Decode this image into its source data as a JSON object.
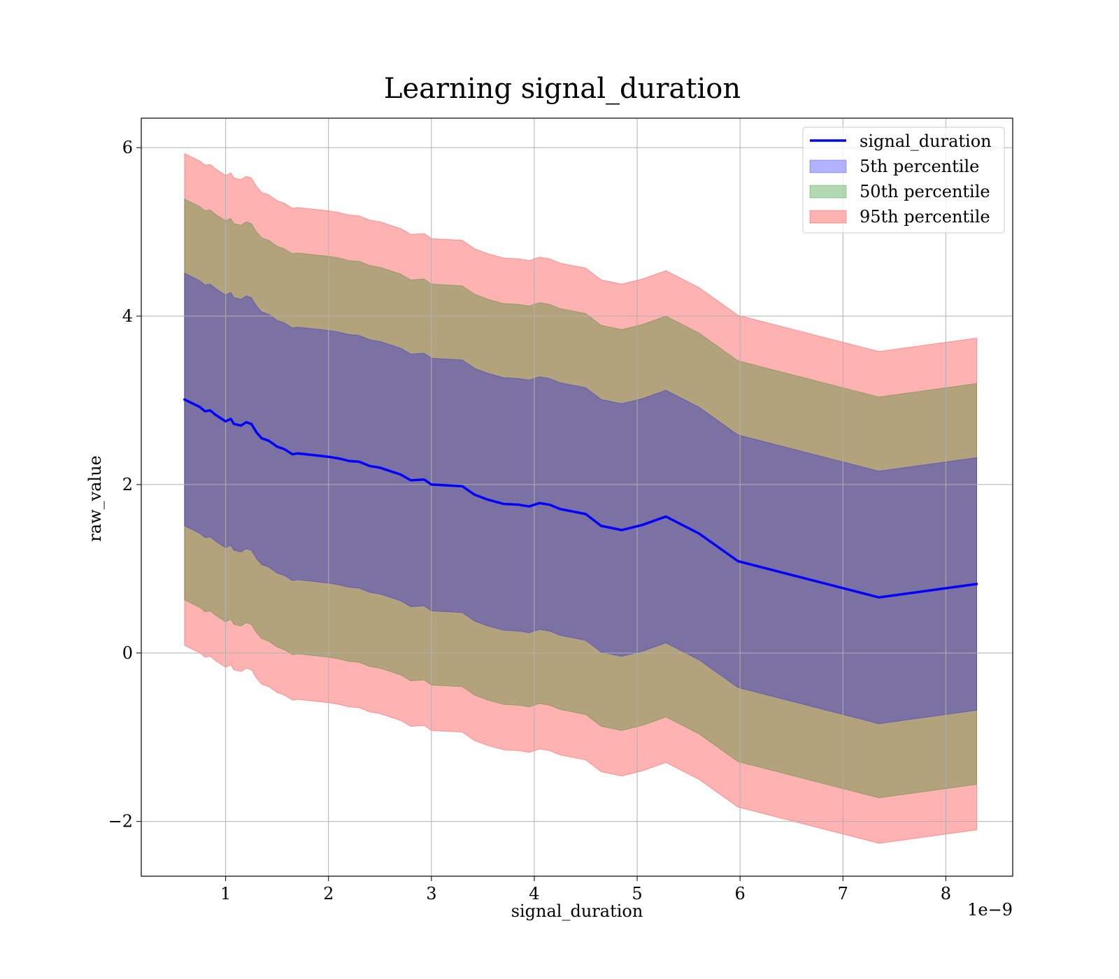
{
  "chart_data": {
    "type": "area",
    "title": "Learning signal_duration",
    "xlabel": "signal_duration",
    "ylabel": "raw_value",
    "x_offset_label": "1e−9",
    "xlim": [
      0.18,
      8.65
    ],
    "ylim": [
      -2.65,
      6.35
    ],
    "x_ticks": [
      1,
      2,
      3,
      4,
      5,
      6,
      7,
      8
    ],
    "x_tick_labels": [
      "1",
      "2",
      "3",
      "4",
      "5",
      "6",
      "7",
      "8"
    ],
    "y_ticks": [
      -2,
      0,
      2,
      4,
      6
    ],
    "y_tick_labels": [
      "−2",
      "0",
      "2",
      "4",
      "6"
    ],
    "grid": true,
    "legend_position": "top-right",
    "x": [
      0.6,
      0.7,
      0.75,
      0.8,
      0.85,
      0.9,
      1.0,
      1.05,
      1.08,
      1.15,
      1.2,
      1.25,
      1.3,
      1.35,
      1.42,
      1.5,
      1.57,
      1.65,
      1.7,
      1.85,
      2.0,
      2.1,
      2.2,
      2.3,
      2.4,
      2.5,
      2.6,
      2.7,
      2.8,
      2.93,
      3.0,
      3.15,
      3.3,
      3.42,
      3.55,
      3.7,
      3.85,
      3.95,
      4.05,
      4.15,
      4.25,
      4.5,
      4.65,
      4.85,
      5.05,
      5.28,
      5.6,
      5.98,
      7.35,
      8.3
    ],
    "series": [
      {
        "name": "signal_duration",
        "color": "#0000ff",
        "values": [
          3.01,
          2.95,
          2.92,
          2.87,
          2.88,
          2.83,
          2.75,
          2.78,
          2.72,
          2.7,
          2.74,
          2.72,
          2.62,
          2.55,
          2.52,
          2.45,
          2.42,
          2.36,
          2.37,
          2.35,
          2.33,
          2.31,
          2.28,
          2.27,
          2.22,
          2.2,
          2.16,
          2.12,
          2.05,
          2.06,
          2.0,
          1.99,
          1.98,
          1.88,
          1.82,
          1.77,
          1.76,
          1.74,
          1.78,
          1.76,
          1.71,
          1.65,
          1.51,
          1.46,
          1.52,
          1.62,
          1.42,
          1.09,
          0.66,
          0.82
        ]
      }
    ],
    "bands": [
      {
        "name": "5th percentile",
        "color": "#0000ff",
        "offset": 1.5
      },
      {
        "name": "50th percentile",
        "color": "#008000",
        "offset": 2.38
      },
      {
        "name": "95th percentile",
        "color": "#ff0000",
        "offset": 2.92
      }
    ]
  }
}
